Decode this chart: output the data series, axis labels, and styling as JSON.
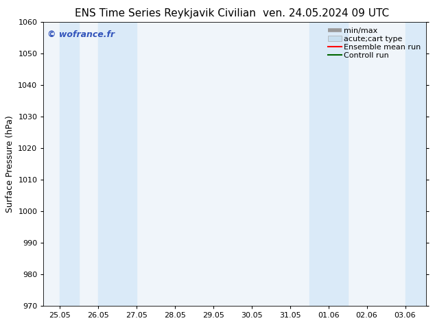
{
  "title_left": "ENS Time Series Reykjavik Civilian",
  "title_right": "ven. 24.05.2024 09 UTC",
  "ylabel": "Surface Pressure (hPa)",
  "ylim": [
    970,
    1060
  ],
  "yticks": [
    970,
    980,
    990,
    1000,
    1010,
    1020,
    1030,
    1040,
    1050,
    1060
  ],
  "xtick_labels": [
    "25.05",
    "26.05",
    "27.05",
    "28.05",
    "29.05",
    "30.05",
    "31.05",
    "01.06",
    "02.06",
    "03.06"
  ],
  "xtick_positions": [
    0,
    1,
    2,
    3,
    4,
    5,
    6,
    7,
    8,
    9
  ],
  "x_num_ticks": 10,
  "shaded_bands": [
    {
      "x_start": 0.0,
      "x_end": 0.5
    },
    {
      "x_start": 1.0,
      "x_end": 2.0
    },
    {
      "x_start": 6.5,
      "x_end": 7.5
    },
    {
      "x_start": 9.0,
      "x_end": 9.55
    }
  ],
  "shade_color": "#daeaf8",
  "plot_bg_color": "#f0f5fa",
  "background_color": "#ffffff",
  "watermark": "© wofrance.fr",
  "watermark_color": "#3355bb",
  "legend_entries": [
    {
      "label": "min/max",
      "color": "#aaaaaa",
      "lw": 5
    },
    {
      "label": "acute;cart type",
      "color": "#c8dff0",
      "lw": 5
    },
    {
      "label": "Ensemble mean run",
      "color": "#ff0000",
      "lw": 1.5
    },
    {
      "label": "Controll run",
      "color": "#006600",
      "lw": 1.5
    }
  ],
  "title_fontsize": 11,
  "tick_fontsize": 8,
  "ylabel_fontsize": 9,
  "watermark_fontsize": 9,
  "legend_fontsize": 8
}
